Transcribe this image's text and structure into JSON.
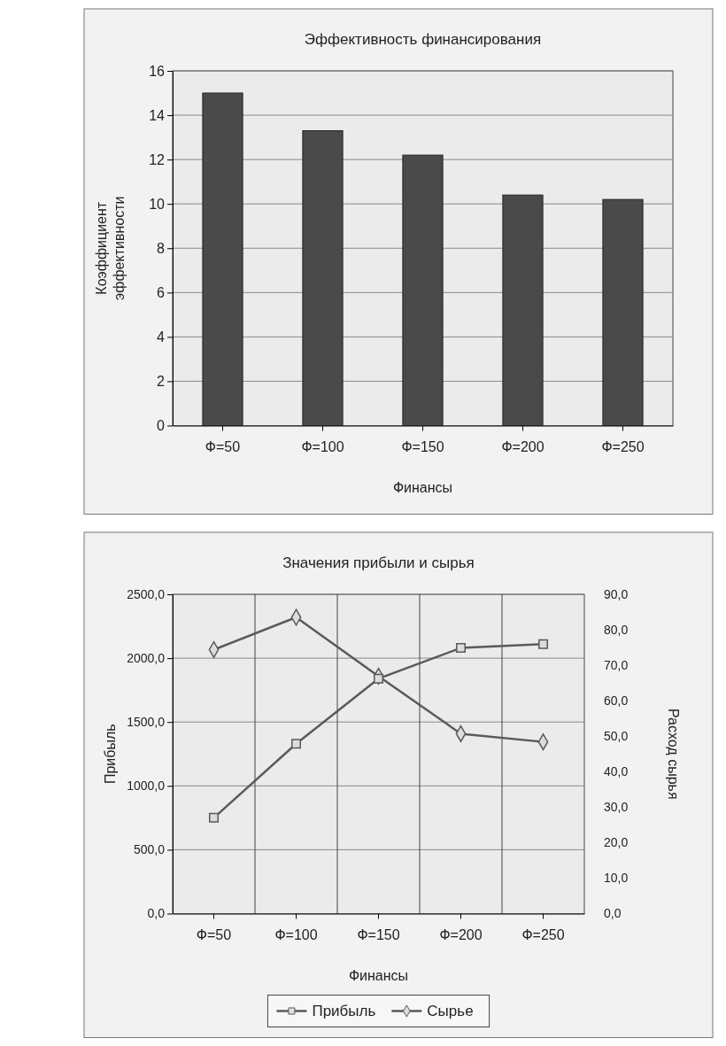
{
  "chart_data": [
    {
      "type": "bar",
      "title": "Эффективность финансирования",
      "xlabel": "Финансы",
      "ylabel": "Коэффициент эффективности",
      "categories": [
        "Ф=50",
        "Ф=100",
        "Ф=150",
        "Ф=200",
        "Ф=250"
      ],
      "values": [
        15.0,
        13.3,
        12.2,
        10.4,
        10.2
      ],
      "color": "#4a4a4a",
      "ylim": [
        0,
        16
      ],
      "yticks": [
        0,
        2,
        4,
        6,
        8,
        10,
        12,
        14,
        16
      ],
      "grid": "y",
      "legend": false
    },
    {
      "type": "line",
      "title": "Значения прибыли и сырья",
      "xlabel": "Финансы",
      "ylabel": "Прибыль",
      "y2label": "Расход сырья",
      "categories": [
        "Ф=50",
        "Ф=100",
        "Ф=150",
        "Ф=200",
        "Ф=250"
      ],
      "series": [
        {
          "name": "Прибыль",
          "color": "#5a5a5a",
          "values": [
            750,
            1330,
            1840,
            2080,
            2110
          ],
          "marker": "square"
        },
        {
          "name": "Сырье",
          "color": "#5a5a5a",
          "values": [
            74.4,
            83.5,
            66.9,
            50.7,
            48.4
          ],
          "axis": "y2",
          "marker": "diamond"
        }
      ],
      "ylim": [
        0,
        2500
      ],
      "yticks": [
        {
          "value": 0,
          "label": "0,0"
        },
        {
          "value": 500,
          "label": "500,0"
        },
        {
          "value": 1000,
          "label": "1000,0"
        },
        {
          "value": 1500,
          "label": "1500,0"
        },
        {
          "value": 2000,
          "label": "2000,0"
        },
        {
          "value": 2500,
          "label": "2500,0"
        }
      ],
      "y2lim": [
        0,
        90
      ],
      "y2ticks": [
        {
          "value": 0,
          "label": "0,0"
        },
        {
          "value": 10,
          "label": "10,0"
        },
        {
          "value": 20,
          "label": "20,0"
        },
        {
          "value": 30,
          "label": "30,0"
        },
        {
          "value": 40,
          "label": "40,0"
        },
        {
          "value": 50,
          "label": "50,0"
        },
        {
          "value": 60,
          "label": "60,0"
        },
        {
          "value": 70,
          "label": "70,0"
        },
        {
          "value": 80,
          "label": "80,0"
        },
        {
          "value": 90,
          "label": "90,0"
        }
      ],
      "grid": true,
      "legend": "bottom",
      "line_style": "solid"
    }
  ]
}
